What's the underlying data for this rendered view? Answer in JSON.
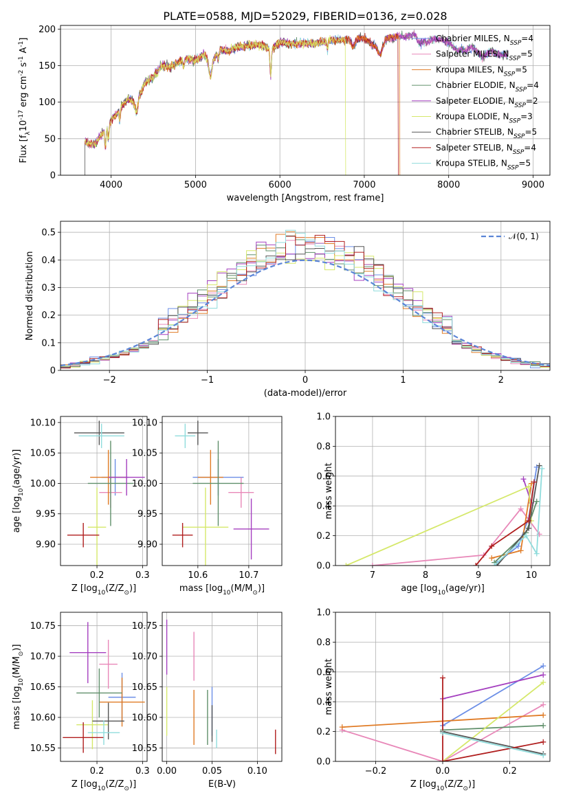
{
  "title": "PLATE=0588, MJD=52029, FIBERID=0136, z=0.028",
  "series": [
    {
      "name": "Chabrier MILES, N$_{SSP}$=4",
      "label_text": "Chabrier MILES, N",
      "n": "4",
      "color": "#6b8ee6"
    },
    {
      "name": "Salpeter MILES, N$_{SSP}$=5",
      "label_text": "Salpeter MILES, N",
      "n": "5",
      "color": "#e887b8"
    },
    {
      "name": "Kroupa MILES, N$_{SSP}$=5",
      "label_text": "Kroupa MILES, N",
      "n": "5",
      "color": "#e07b25"
    },
    {
      "name": "Chabrier ELODIE, N$_{SSP}$=4",
      "label_text": "Chabrier ELODIE, N",
      "n": "4",
      "color": "#5f8f6a"
    },
    {
      "name": "Salpeter ELODIE, N$_{SSP}$=2",
      "label_text": "Salpeter ELODIE, N",
      "n": "2",
      "color": "#a43fbf"
    },
    {
      "name": "Kroupa ELODIE, N$_{SSP}$=3",
      "label_text": "Kroupa ELODIE, N",
      "n": "3",
      "color": "#d5e86a"
    },
    {
      "name": "Chabrier STELIB, N$_{SSP}$=5",
      "label_text": "Chabrier STELIB, N",
      "n": "5",
      "color": "#555555"
    },
    {
      "name": "Salpeter STELIB, N$_{SSP}$=4",
      "label_text": "Salpeter STELIB, N",
      "n": "4",
      "color": "#b01e1e"
    },
    {
      "name": "Kroupa STELIB, N$_{SSP}$=5",
      "label_text": "Kroupa STELIB, N",
      "n": "5",
      "color": "#8fdcdc"
    }
  ],
  "chart_data": [
    {
      "id": "spectrum",
      "type": "line",
      "xlabel": "wavelength [Angstrom, rest frame]",
      "ylabel": "Flux [f$_\\lambda$10$^{-17}$ erg cm$^{-2}$ s$^{-1}$ A$^{-1}$]",
      "xlim": [
        3400,
        9200
      ],
      "ylim": [
        0,
        205
      ],
      "xticks": [
        4000,
        5000,
        6000,
        7000,
        8000,
        9000
      ],
      "yticks": [
        0,
        50,
        100,
        150,
        200
      ],
      "continuum": {
        "x": [
          3690,
          3800,
          3900,
          4000,
          4100,
          4200,
          4300,
          4400,
          4500,
          4600,
          4700,
          4800,
          4900,
          5000,
          5100,
          5200,
          5300,
          5400,
          5500,
          5600,
          5700,
          5800,
          5900,
          6000,
          6100,
          6200,
          6300,
          6400,
          6500,
          6600,
          6700,
          6800,
          6900,
          7000,
          7100,
          7200,
          7300,
          7400,
          7500,
          7600,
          7700,
          7800,
          7900,
          8000,
          8100,
          8200,
          8300,
          8400,
          8500,
          8600,
          8700
        ],
        "y": [
          45,
          42,
          58,
          75,
          90,
          105,
          98,
          126,
          135,
          150,
          148,
          155,
          160,
          157,
          165,
          158,
          172,
          170,
          176,
          176,
          178,
          178,
          172,
          182,
          180,
          180,
          182,
          180,
          182,
          185,
          185,
          186,
          186,
          188,
          178,
          185,
          188,
          190,
          190,
          192,
          182,
          186,
          186,
          182,
          170,
          176,
          174,
          162,
          170,
          165,
          165
        ]
      },
      "dropouts": [
        {
          "series": "Kroupa ELODIE, N$_{SSP}$=3",
          "x": 6780,
          "y": 0
        },
        {
          "series": "Salpeter STELIB, N$_{SSP}$=4",
          "x": 7400,
          "y": 0
        },
        {
          "series": "Kroupa MILES, N$_{SSP}$=5",
          "x": 7420,
          "y": 0
        }
      ]
    },
    {
      "id": "residuals",
      "type": "bar",
      "xlabel": "(data-model)/error",
      "ylabel": "Normed distribution",
      "xlim": [
        -2.5,
        2.5
      ],
      "ylim": [
        0,
        0.54
      ],
      "xticks": [
        -2,
        -1,
        0,
        1,
        2
      ],
      "yticks": [
        0.0,
        0.1,
        0.2,
        0.3,
        0.4,
        0.5
      ],
      "bin_width": 0.1,
      "reference": {
        "name": "$\\mathcal{N}(0,1)$",
        "label_text": "𝒩(0, 1)",
        "mean": 0,
        "sigma": 1
      }
    },
    {
      "id": "age-Z",
      "type": "scatter",
      "xlabel": "Z [log$_{10}$(Z/Z$_\\odot$)]",
      "ylabel": "age  [log$_{10}$(age/yr)]",
      "xlim": [
        0.12,
        0.31
      ],
      "ylim": [
        9.865,
        10.11
      ],
      "xticks": [
        0.2,
        0.3
      ],
      "yticks": [
        9.9,
        9.95,
        10.0,
        10.05,
        10.1
      ],
      "points": [
        {
          "x": 0.24,
          "xerr": 0.03,
          "y": 10.01,
          "yerr": 0.03
        },
        {
          "x": 0.23,
          "xerr": 0.025,
          "y": 9.985,
          "yerr": 0.025
        },
        {
          "x": 0.225,
          "xerr": 0.04,
          "y": 10.01,
          "yerr": 0.045
        },
        {
          "x": 0.23,
          "xerr": 0.05,
          "y": 10.0,
          "yerr": 0.07
        },
        {
          "x": 0.265,
          "xerr": 0.04,
          "y": 10.01,
          "yerr": 0.03
        },
        {
          "x": 0.2,
          "xerr": 0.02,
          "y": 9.928,
          "yerr": 0.065
        },
        {
          "x": 0.205,
          "xerr": 0.055,
          "y": 10.083,
          "yerr": 0.02
        },
        {
          "x": 0.17,
          "xerr": 0.035,
          "y": 9.915,
          "yerr": 0.02
        },
        {
          "x": 0.21,
          "xerr": 0.05,
          "y": 10.078,
          "yerr": 0.02
        }
      ]
    },
    {
      "id": "age-mass",
      "type": "scatter",
      "xlabel": "mass [log$_{10}$(M/M$_\\odot$)]",
      "ylabel": "",
      "xlim": [
        10.53,
        10.765
      ],
      "ylim": [
        9.865,
        10.11
      ],
      "xticks": [
        10.6,
        10.7
      ],
      "yticks": [
        9.9,
        9.95,
        10.0,
        10.05,
        10.1
      ],
      "points": [
        {
          "x": 10.64,
          "xerr": 0.05,
          "y": 10.01,
          "yerr": 0.03
        },
        {
          "x": 10.685,
          "xerr": 0.025,
          "y": 9.985,
          "yerr": 0.025
        },
        {
          "x": 10.625,
          "xerr": 0.025,
          "y": 10.01,
          "yerr": 0.045
        },
        {
          "x": 10.64,
          "xerr": 0.05,
          "y": 10.0,
          "yerr": 0.07
        },
        {
          "x": 10.705,
          "xerr": 0.035,
          "y": 9.925,
          "yerr": 0.05
        },
        {
          "x": 10.615,
          "xerr": 0.045,
          "y": 9.928,
          "yerr": 0.065
        },
        {
          "x": 10.6,
          "xerr": 0.02,
          "y": 10.083,
          "yerr": 0.02
        },
        {
          "x": 10.57,
          "xerr": 0.02,
          "y": 9.915,
          "yerr": 0.02
        },
        {
          "x": 10.575,
          "xerr": 0.02,
          "y": 10.078,
          "yerr": 0.02
        }
      ]
    },
    {
      "id": "weight-age",
      "type": "line",
      "xlabel": "age  [log$_{10}$(age/yr)]",
      "ylabel": "mass weight",
      "xlim": [
        6.3,
        10.35
      ],
      "ylim": [
        0,
        1.0
      ],
      "xticks": [
        7,
        8,
        9,
        10
      ],
      "yticks": [
        0.0,
        0.2,
        0.4,
        0.6,
        0.8,
        1.0
      ],
      "lines": [
        {
          "x": [
            9.35,
            9.75,
            9.95,
            10.1
          ],
          "y": [
            0.02,
            0.13,
            0.32,
            0.66
          ]
        },
        {
          "x": [
            7.0,
            9.1,
            9.8,
            10.15
          ],
          "y": [
            0.0,
            0.07,
            0.38,
            0.21
          ]
        },
        {
          "x": [
            9.25,
            9.8,
            10.0
          ],
          "y": [
            0.05,
            0.1,
            0.55
          ]
        },
        {
          "x": [
            9.3,
            9.9,
            10.1
          ],
          "y": [
            0.02,
            0.22,
            0.43
          ]
        },
        {
          "x": [
            9.85,
            10.0
          ],
          "y": [
            0.58,
            0.42
          ]
        },
        {
          "x": [
            6.5,
            9.95,
            10.0
          ],
          "y": [
            0.0,
            0.53,
            0.3
          ]
        },
        {
          "x": [
            9.35,
            9.95,
            10.15
          ],
          "y": [
            0.0,
            0.25,
            0.67
          ]
        },
        {
          "x": [
            8.95,
            9.25,
            9.95,
            10.05
          ],
          "y": [
            0.0,
            0.13,
            0.3,
            0.56
          ]
        },
        {
          "x": [
            9.3,
            9.9,
            10.1,
            10.2
          ],
          "y": [
            0.0,
            0.2,
            0.08,
            0.65
          ]
        }
      ]
    },
    {
      "id": "mass-Z",
      "type": "scatter",
      "xlabel": "Z [log$_{10}$(Z/Z$_\\odot$)]",
      "ylabel": "mass [log$_{10}$(M/M$_\\odot$)]",
      "xlim": [
        0.12,
        0.31
      ],
      "ylim": [
        10.528,
        10.772
      ],
      "xticks": [
        0.2,
        0.3
      ],
      "yticks": [
        10.55,
        10.6,
        10.65,
        10.7,
        10.75
      ],
      "points": [
        {
          "x": 0.255,
          "xerr": 0.03,
          "y": 10.633,
          "yerr": 0.04
        },
        {
          "x": 0.225,
          "xerr": 0.02,
          "y": 10.687,
          "yerr": 0.04
        },
        {
          "x": 0.255,
          "xerr": 0.05,
          "y": 10.625,
          "yerr": 0.04
        },
        {
          "x": 0.205,
          "xerr": 0.05,
          "y": 10.64,
          "yerr": 0.04
        },
        {
          "x": 0.18,
          "xerr": 0.04,
          "y": 10.706,
          "yerr": 0.05
        },
        {
          "x": 0.19,
          "xerr": 0.035,
          "y": 10.588,
          "yerr": 0.04
        },
        {
          "x": 0.225,
          "xerr": 0.035,
          "y": 10.594,
          "yerr": 0.03
        },
        {
          "x": 0.17,
          "xerr": 0.045,
          "y": 10.567,
          "yerr": 0.025
        },
        {
          "x": 0.215,
          "xerr": 0.035,
          "y": 10.575,
          "yerr": 0.02
        }
      ]
    },
    {
      "id": "mass-ebv",
      "type": "scatter",
      "xlabel": "E(B-V)",
      "ylabel": "",
      "xlim": [
        -0.005,
        0.127
      ],
      "ylim": [
        10.528,
        10.772
      ],
      "xticks": [
        0.0,
        0.05,
        0.1
      ],
      "yticks": [
        10.55,
        10.6,
        10.65,
        10.7,
        10.75
      ],
      "points": [
        {
          "x": 0.05,
          "y": 10.61,
          "yerr": 0.04
        },
        {
          "x": 0.03,
          "y": 10.7,
          "yerr": 0.04
        },
        {
          "x": 0.03,
          "y": 10.6,
          "yerr": 0.045
        },
        {
          "x": 0.045,
          "y": 10.6,
          "yerr": 0.045
        },
        {
          "x": 0.0,
          "y": 10.715,
          "yerr": 0.045
        },
        {
          "x": 0.0,
          "y": 10.61,
          "yerr": 0.04
        },
        {
          "x": 0.05,
          "y": 10.59,
          "yerr": 0.03
        },
        {
          "x": 0.12,
          "y": 10.56,
          "yerr": 0.02
        },
        {
          "x": 0.055,
          "y": 10.565,
          "yerr": 0.015
        }
      ]
    },
    {
      "id": "weight-Z",
      "type": "line",
      "xlabel": "Z [log$_{10}$(Z/Z$_\\odot$)]",
      "ylabel": "mass weight",
      "xlim": [
        -0.32,
        0.32
      ],
      "ylim": [
        0,
        1.0
      ],
      "xticks": [
        -0.2,
        0.0,
        0.2
      ],
      "yticks": [
        0.0,
        0.2,
        0.4,
        0.6,
        0.8,
        1.0
      ],
      "lines": [
        {
          "x": [
            0.0,
            0.3
          ],
          "y": [
            0.24,
            0.64
          ]
        },
        {
          "x": [
            -0.3,
            0.0,
            0.3
          ],
          "y": [
            0.21,
            0.0,
            0.38
          ]
        },
        {
          "x": [
            -0.3,
            0.3
          ],
          "y": [
            0.23,
            0.31
          ]
        },
        {
          "x": [
            0.0,
            0.3
          ],
          "y": [
            0.21,
            0.24
          ]
        },
        {
          "x": [
            0.0,
            0.3
          ],
          "y": [
            0.42,
            0.58
          ]
        },
        {
          "x": [
            0.0,
            0.3
          ],
          "y": [
            0.0,
            0.53
          ]
        },
        {
          "x": [
            0.0,
            0.3
          ],
          "y": [
            0.2,
            0.05
          ]
        },
        {
          "x": [
            0.0,
            0.0,
            0.3
          ],
          "y": [
            0.56,
            0.0,
            0.13
          ]
        },
        {
          "x": [
            0.0,
            0.3
          ],
          "y": [
            0.19,
            0.04
          ]
        }
      ]
    }
  ]
}
